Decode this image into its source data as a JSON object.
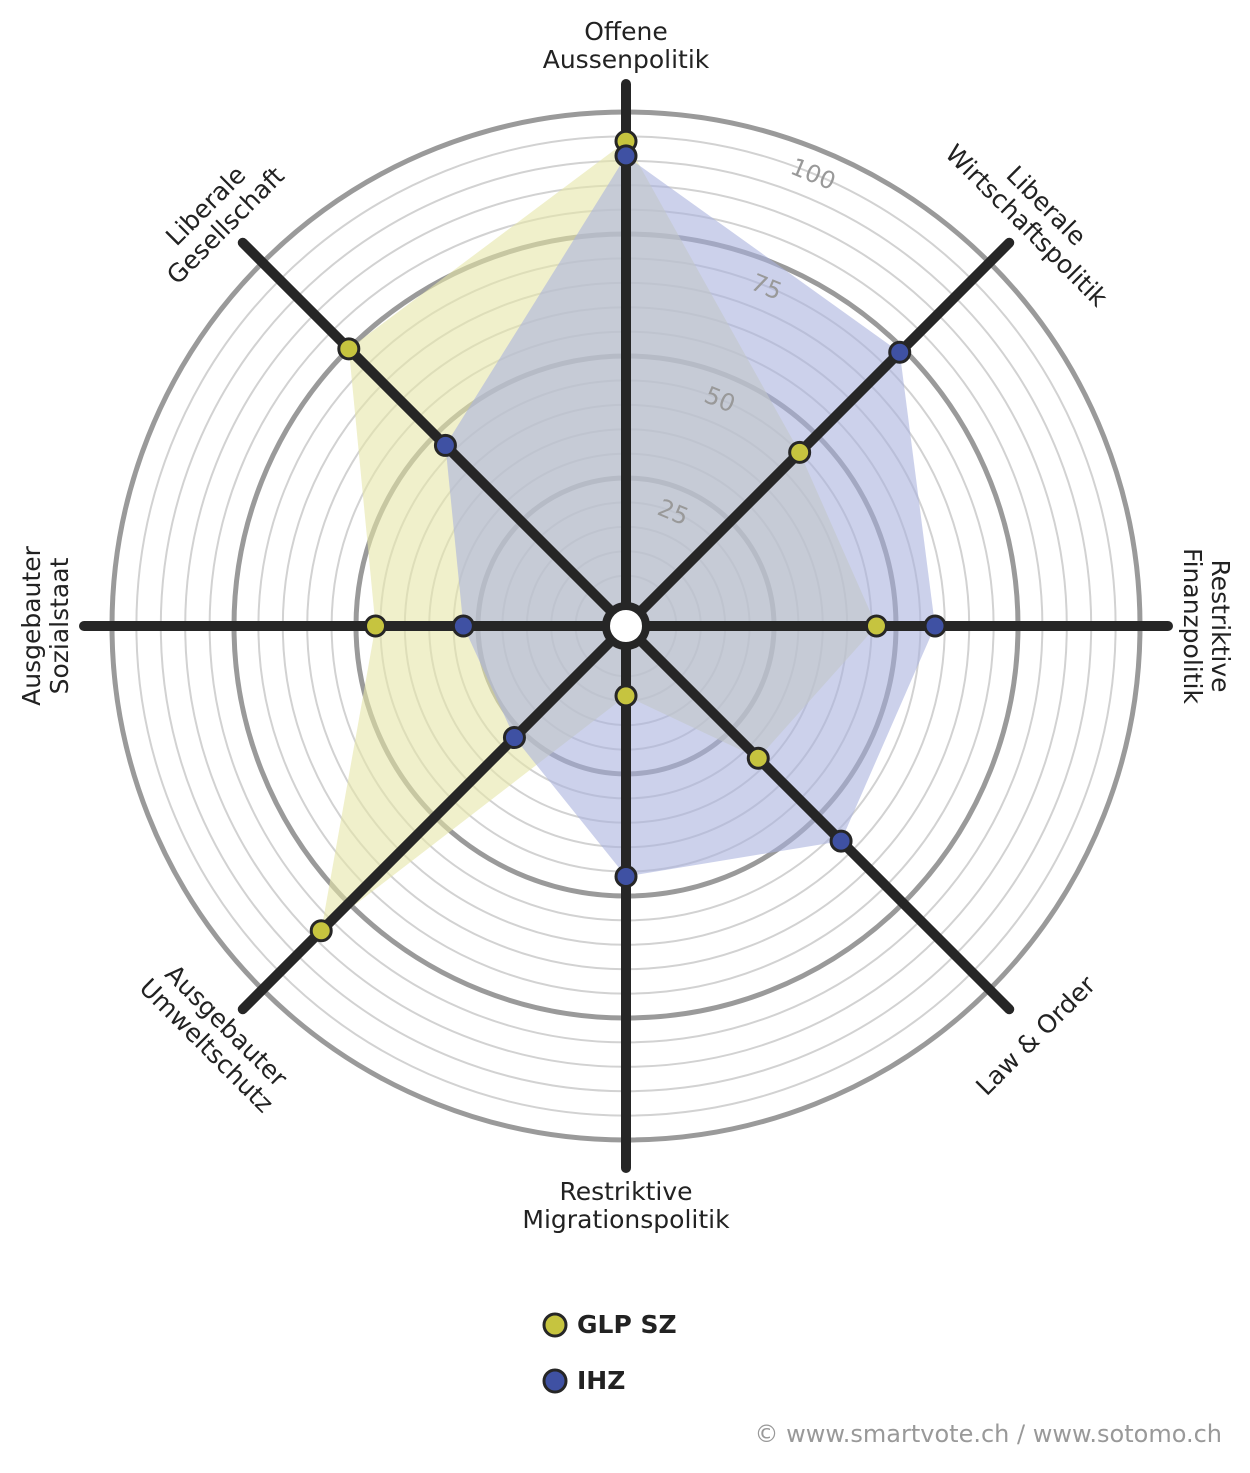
{
  "chart_data": {
    "type": "radar",
    "categories": [
      "Offene\nAussenpolitik",
      "Liberale\nWirtschaftspolitik",
      "Restriktive\nFinanzpolitik",
      "Law & Order",
      "Restriktive\nMigrationspolitik",
      "Ausgebauter\nUmweltschutz",
      "Ausgebauter\nSozialstaat",
      "Liberale\nGesellschaft"
    ],
    "series": [
      {
        "name": "GLP SZ",
        "color": "#c6c43f",
        "fill": "#e6e6a8",
        "values": [
          94,
          45,
          46,
          33,
          9,
          83,
          46,
          75
        ]
      },
      {
        "name": "IHZ",
        "color": "#3f51a3",
        "fill": "#aab3de",
        "values": [
          91,
          74,
          58,
          57,
          46,
          27,
          28,
          47
        ]
      }
    ],
    "ylim": [
      0,
      100
    ],
    "yticks": [
      25,
      50,
      75,
      100
    ],
    "source": "© www.smartvote.ch / www.sotomo.ch"
  }
}
